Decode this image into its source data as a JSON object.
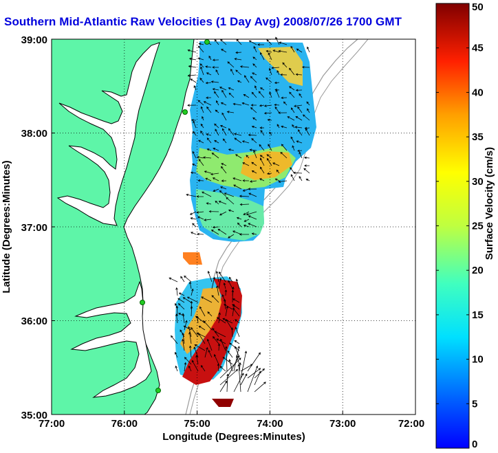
{
  "title": "Southern Mid-Atlantic Raw Velocities (1 Day Avg) 2008/07/26 1700 GMT",
  "chart_data": {
    "type": "heatmap",
    "xlabel": "Longitude (Degrees:Minutes)",
    "ylabel": "Latitude (Degrees:Minutes)",
    "xlim": [
      -77,
      -72
    ],
    "ylim": [
      35,
      39
    ],
    "x_ticks": [
      "77:00",
      "76:00",
      "75:00",
      "74:00",
      "73:00",
      "72:00"
    ],
    "y_ticks": [
      "35:00",
      "36:00",
      "37:00",
      "38:00",
      "39:00"
    ],
    "grid": "dotted",
    "colorbar": {
      "label": "Surface Velocity (cm/s)",
      "range": [
        0,
        50
      ],
      "ticks": [
        "0",
        "5",
        "10",
        "15",
        "20",
        "25",
        "30",
        "35",
        "40",
        "45",
        "50"
      ],
      "colormap": "jet"
    },
    "colors": {
      "land": "#5ef5a8",
      "coastline": "#000000",
      "bathymetry": "#999999",
      "station": "#22cc22",
      "grid": "#000000"
    }
  }
}
